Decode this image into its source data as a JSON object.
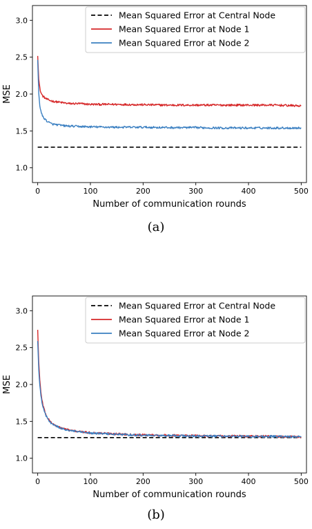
{
  "captions": [
    "(a)",
    "(b)"
  ],
  "chart_data": [
    {
      "type": "line",
      "panel": "(a)",
      "title": "",
      "xlabel": "Number of communication rounds",
      "ylabel": "MSE",
      "xlim": [
        -10,
        510
      ],
      "ylim": [
        0.8,
        3.2
      ],
      "xticks": [
        0,
        100,
        200,
        300,
        400,
        500
      ],
      "yticks": [
        1.0,
        1.5,
        2.0,
        2.5,
        3.0
      ],
      "xtick_labels": [
        "0",
        "100",
        "200",
        "300",
        "400",
        "500"
      ],
      "ytick_labels": [
        "1.0",
        "1.5",
        "2.0",
        "2.5",
        "3.0"
      ],
      "legend_position": "top-right",
      "grid": false,
      "series": [
        {
          "name": "Mean Squared Error at Central Node",
          "color": "#000000",
          "style": "dashed",
          "x": [
            0,
            500
          ],
          "y": [
            1.28,
            1.28
          ]
        },
        {
          "name": "Mean Squared Error at Node 1",
          "color": "#d62728",
          "style": "solid",
          "x": [
            0,
            2,
            4,
            6,
            8,
            10,
            15,
            20,
            25,
            30,
            40,
            50,
            60,
            80,
            100,
            150,
            200,
            250,
            300,
            350,
            400,
            450,
            500
          ],
          "y": [
            2.53,
            2.2,
            2.08,
            2.02,
            1.99,
            1.97,
            1.94,
            1.92,
            1.91,
            1.9,
            1.89,
            1.88,
            1.87,
            1.87,
            1.86,
            1.86,
            1.855,
            1.85,
            1.85,
            1.85,
            1.85,
            1.85,
            1.84
          ]
        },
        {
          "name": "Mean Squared Error at Node 2",
          "color": "#3a7fc1",
          "style": "solid",
          "x": [
            0,
            2,
            4,
            6,
            8,
            10,
            15,
            20,
            25,
            30,
            40,
            50,
            60,
            80,
            100,
            150,
            200,
            250,
            300,
            350,
            400,
            450,
            500
          ],
          "y": [
            2.45,
            2.0,
            1.85,
            1.77,
            1.72,
            1.69,
            1.65,
            1.62,
            1.6,
            1.59,
            1.58,
            1.57,
            1.565,
            1.56,
            1.555,
            1.55,
            1.55,
            1.545,
            1.545,
            1.54,
            1.54,
            1.54,
            1.54
          ]
        }
      ]
    },
    {
      "type": "line",
      "panel": "(b)",
      "title": "",
      "xlabel": "Number of communication rounds",
      "ylabel": "MSE",
      "xlim": [
        -10,
        510
      ],
      "ylim": [
        0.8,
        3.2
      ],
      "xticks": [
        0,
        100,
        200,
        300,
        400,
        500
      ],
      "yticks": [
        1.0,
        1.5,
        2.0,
        2.5,
        3.0
      ],
      "xtick_labels": [
        "0",
        "100",
        "200",
        "300",
        "400",
        "500"
      ],
      "ytick_labels": [
        "1.0",
        "1.5",
        "2.0",
        "2.5",
        "3.0"
      ],
      "legend_position": "top-right",
      "grid": false,
      "series": [
        {
          "name": "Mean Squared Error at Central Node",
          "color": "#000000",
          "style": "dashed",
          "x": [
            0,
            500
          ],
          "y": [
            1.28,
            1.28
          ]
        },
        {
          "name": "Mean Squared Error at Node 1",
          "color": "#d62728",
          "style": "solid",
          "x": [
            0,
            2,
            4,
            6,
            8,
            10,
            15,
            20,
            25,
            30,
            40,
            50,
            60,
            80,
            100,
            150,
            200,
            250,
            300,
            350,
            400,
            450,
            500
          ],
          "y": [
            2.74,
            2.3,
            2.05,
            1.9,
            1.8,
            1.72,
            1.6,
            1.53,
            1.49,
            1.46,
            1.42,
            1.4,
            1.38,
            1.36,
            1.345,
            1.33,
            1.315,
            1.31,
            1.305,
            1.3,
            1.3,
            1.295,
            1.29
          ]
        },
        {
          "name": "Mean Squared Error at Node 2",
          "color": "#3a7fc1",
          "style": "solid",
          "x": [
            0,
            2,
            4,
            6,
            8,
            10,
            15,
            20,
            25,
            30,
            40,
            50,
            60,
            80,
            100,
            150,
            200,
            250,
            300,
            350,
            400,
            450,
            500
          ],
          "y": [
            2.58,
            2.2,
            1.98,
            1.85,
            1.76,
            1.7,
            1.59,
            1.52,
            1.48,
            1.455,
            1.415,
            1.395,
            1.375,
            1.355,
            1.34,
            1.325,
            1.31,
            1.305,
            1.3,
            1.3,
            1.295,
            1.295,
            1.29
          ]
        }
      ]
    }
  ]
}
